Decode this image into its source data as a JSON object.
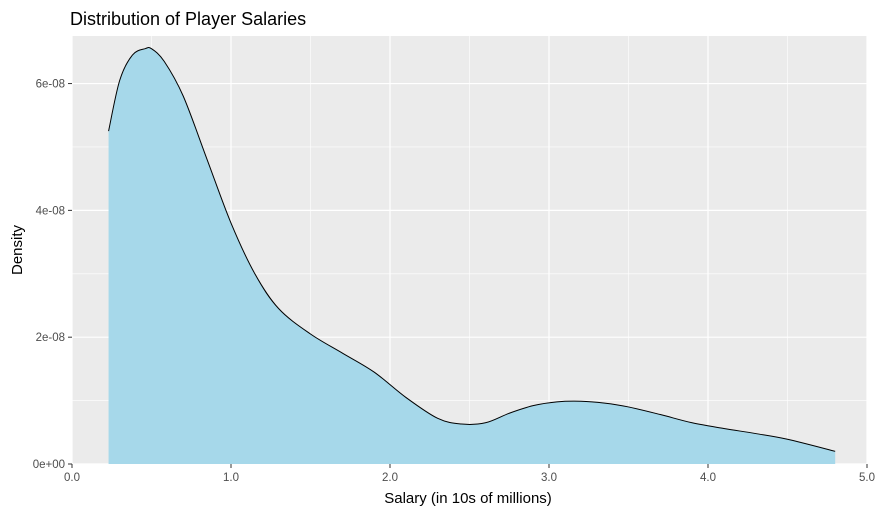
{
  "chart_data": {
    "type": "area",
    "title": "Distribution of Player Salaries",
    "xlabel": "Salary (in 10s of millions)",
    "ylabel": "Density",
    "xlim": [
      0,
      5
    ],
    "ylim": [
      0,
      6.75e-08
    ],
    "x_ticks": [
      0,
      1,
      2,
      3,
      4,
      5
    ],
    "x_tick_labels": [
      "0.0",
      "1.0",
      "2.0",
      "3.0",
      "4.0",
      "5.0"
    ],
    "y_ticks": [
      0,
      2e-08,
      4e-08,
      6e-08
    ],
    "y_tick_labels": [
      "0e+00",
      "2e-08",
      "4e-08",
      "6e-08"
    ],
    "grid": true,
    "legend": "none",
    "fill_color": "#a6d8ea",
    "line_color": "#000000",
    "panel_color": "#ebebeb",
    "series": [
      {
        "x": [
          0.23,
          0.3,
          0.38,
          0.46,
          0.5,
          0.58,
          0.7,
          0.85,
          1.0,
          1.15,
          1.3,
          1.5,
          1.7,
          1.9,
          2.1,
          2.3,
          2.45,
          2.6,
          2.75,
          2.9,
          3.05,
          3.2,
          3.35,
          3.5,
          3.7,
          3.9,
          4.1,
          4.3,
          4.5,
          4.8
        ],
        "y": [
          5.25e-08,
          6.05e-08,
          6.45e-08,
          6.55e-08,
          6.55e-08,
          6.35e-08,
          5.8e-08,
          4.8e-08,
          3.8e-08,
          3e-08,
          2.45e-08,
          2.05e-08,
          1.75e-08,
          1.45e-08,
          1.05e-08,
          7.2e-09,
          6.3e-09,
          6.5e-09,
          8e-09,
          9.2e-09,
          9.8e-09,
          9.9e-09,
          9.6e-09,
          9e-09,
          7.8e-09,
          6.5e-09,
          5.6e-09,
          4.8e-09,
          3.9e-09,
          2e-09
        ]
      }
    ]
  }
}
